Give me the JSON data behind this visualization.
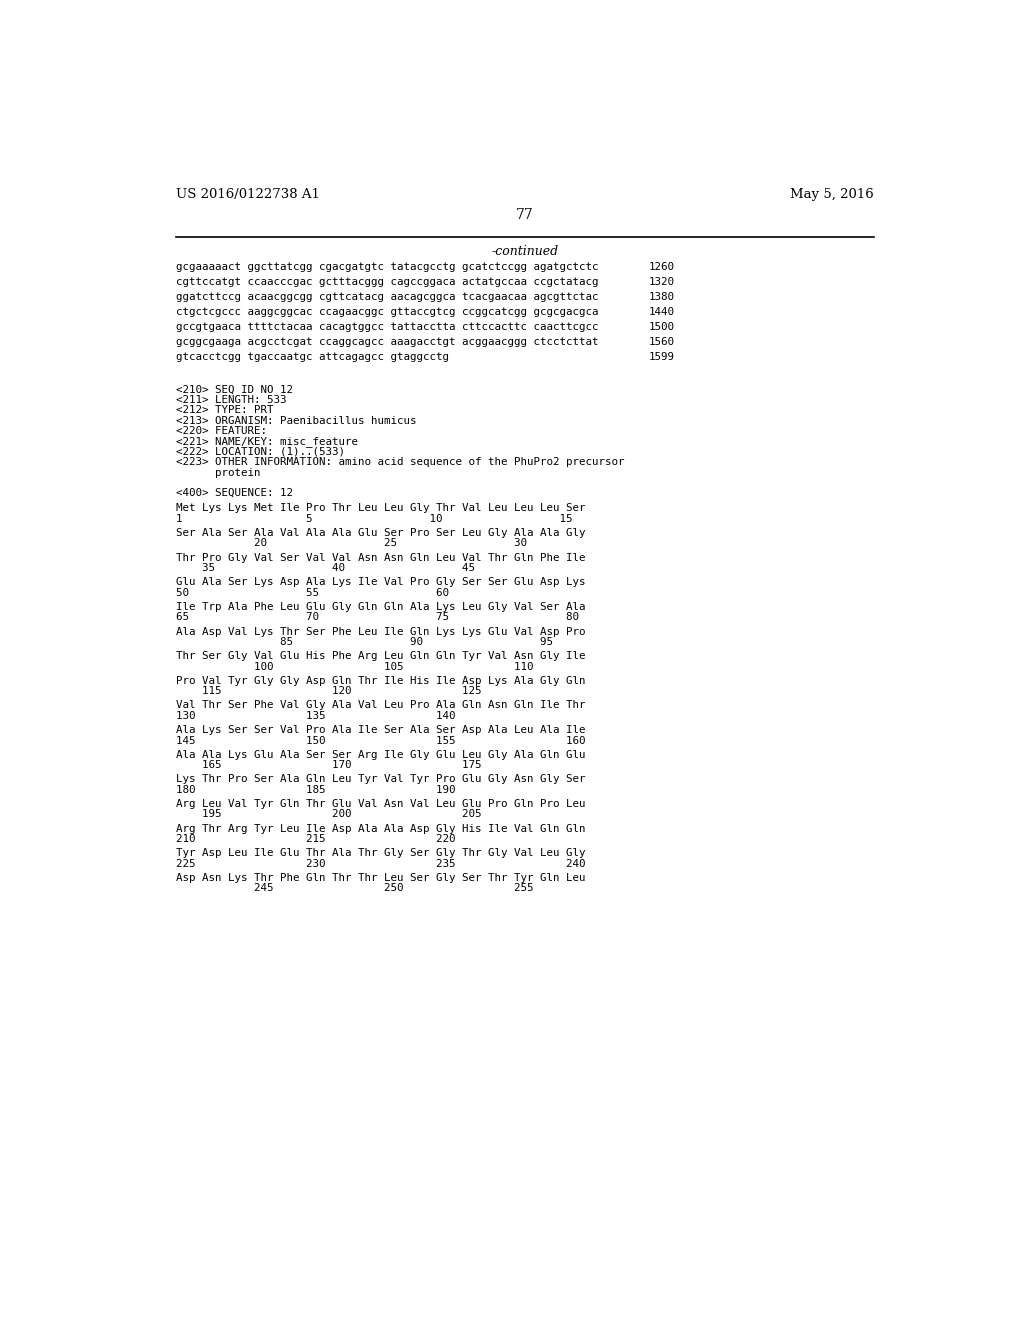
{
  "header_left": "US 2016/0122738 A1",
  "header_right": "May 5, 2016",
  "page_number": "77",
  "continued_label": "-continued",
  "background_color": "#ffffff",
  "text_color": "#000000",
  "font_size_header": 9.5,
  "font_size_body": 7.8,
  "font_size_page": 10,
  "font_size_continued": 9,
  "sequence_lines": [
    [
      "gcgaaaaact ggcttatcgg cgacgatgtc tatacgcctg gcatctccgg agatgctctc",
      "1260"
    ],
    [
      "cgttccatgt ccaacccgac gctttacggg cagccggaca actatgccaa ccgctatacg",
      "1320"
    ],
    [
      "ggatcttccg acaacggcgg cgttcatacg aacagcggca tcacgaacaa agcgttctac",
      "1380"
    ],
    [
      "ctgctcgccc aaggcggcac ccagaacggc gttaccgtcg ccggcatcgg gcgcgacgca",
      "1440"
    ],
    [
      "gccgtgaaca ttttctacaa cacagtggcc tattacctta cttccacttc caacttcgcc",
      "1500"
    ],
    [
      "gcggcgaaga acgcctcgat ccaggcagcc aaagacctgt acggaacggg ctcctcttat",
      "1560"
    ],
    [
      "gtcacctcgg tgaccaatgc attcagagcc gtaggcctg",
      "1599"
    ]
  ],
  "metadata_lines": [
    "<210> SEQ ID NO 12",
    "<211> LENGTH: 533",
    "<212> TYPE: PRT",
    "<213> ORGANISM: Paenibacillus humicus",
    "<220> FEATURE:",
    "<221> NAME/KEY: misc_feature",
    "<222> LOCATION: (1)..(533)",
    "<223> OTHER INFORMATION: amino acid sequence of the PhuPro2 precursor",
    "      protein"
  ],
  "sequence_label": "<400> SEQUENCE: 12",
  "amino_acid_blocks": [
    {
      "seq": "Met Lys Lys Met Ile Pro Thr Leu Leu Gly Thr Val Leu Leu Leu Ser",
      "num": "1                   5                  10                  15"
    },
    {
      "seq": "Ser Ala Ser Ala Val Ala Ala Glu Ser Pro Ser Leu Gly Ala Ala Gly",
      "num": "            20                  25                  30"
    },
    {
      "seq": "Thr Pro Gly Val Ser Val Val Asn Asn Gln Leu Val Thr Gln Phe Ile",
      "num": "    35                  40                  45"
    },
    {
      "seq": "Glu Ala Ser Lys Asp Ala Lys Ile Val Pro Gly Ser Ser Glu Asp Lys",
      "num": "50                  55                  60"
    },
    {
      "seq": "Ile Trp Ala Phe Leu Glu Gly Gln Gln Ala Lys Leu Gly Val Ser Ala",
      "num": "65                  70                  75                  80"
    },
    {
      "seq": "Ala Asp Val Lys Thr Ser Phe Leu Ile Gln Lys Lys Glu Val Asp Pro",
      "num": "                85                  90                  95"
    },
    {
      "seq": "Thr Ser Gly Val Glu His Phe Arg Leu Gln Gln Tyr Val Asn Gly Ile",
      "num": "            100                 105                 110"
    },
    {
      "seq": "Pro Val Tyr Gly Gly Asp Gln Thr Ile His Ile Asp Lys Ala Gly Gln",
      "num": "    115                 120                 125"
    },
    {
      "seq": "Val Thr Ser Phe Val Gly Ala Val Leu Pro Ala Gln Asn Gln Ile Thr",
      "num": "130                 135                 140"
    },
    {
      "seq": "Ala Lys Ser Ser Val Pro Ala Ile Ser Ala Ser Asp Ala Leu Ala Ile",
      "num": "145                 150                 155                 160"
    },
    {
      "seq": "Ala Ala Lys Glu Ala Ser Ser Arg Ile Gly Glu Leu Gly Ala Gln Glu",
      "num": "    165                 170                 175"
    },
    {
      "seq": "Lys Thr Pro Ser Ala Gln Leu Tyr Val Tyr Pro Glu Gly Asn Gly Ser",
      "num": "180                 185                 190"
    },
    {
      "seq": "Arg Leu Val Tyr Gln Thr Glu Val Asn Val Leu Glu Pro Gln Pro Leu",
      "num": "    195                 200                 205"
    },
    {
      "seq": "Arg Thr Arg Tyr Leu Ile Asp Ala Ala Asp Gly His Ile Val Gln Gln",
      "num": "210                 215                 220"
    },
    {
      "seq": "Tyr Asp Leu Ile Glu Thr Ala Thr Gly Ser Gly Thr Gly Val Leu Gly",
      "num": "225                 230                 235                 240"
    },
    {
      "seq": "Asp Asn Lys Thr Phe Gln Thr Thr Leu Ser Gly Ser Thr Tyr Gln Leu",
      "num": "            245                 250                 255"
    }
  ]
}
